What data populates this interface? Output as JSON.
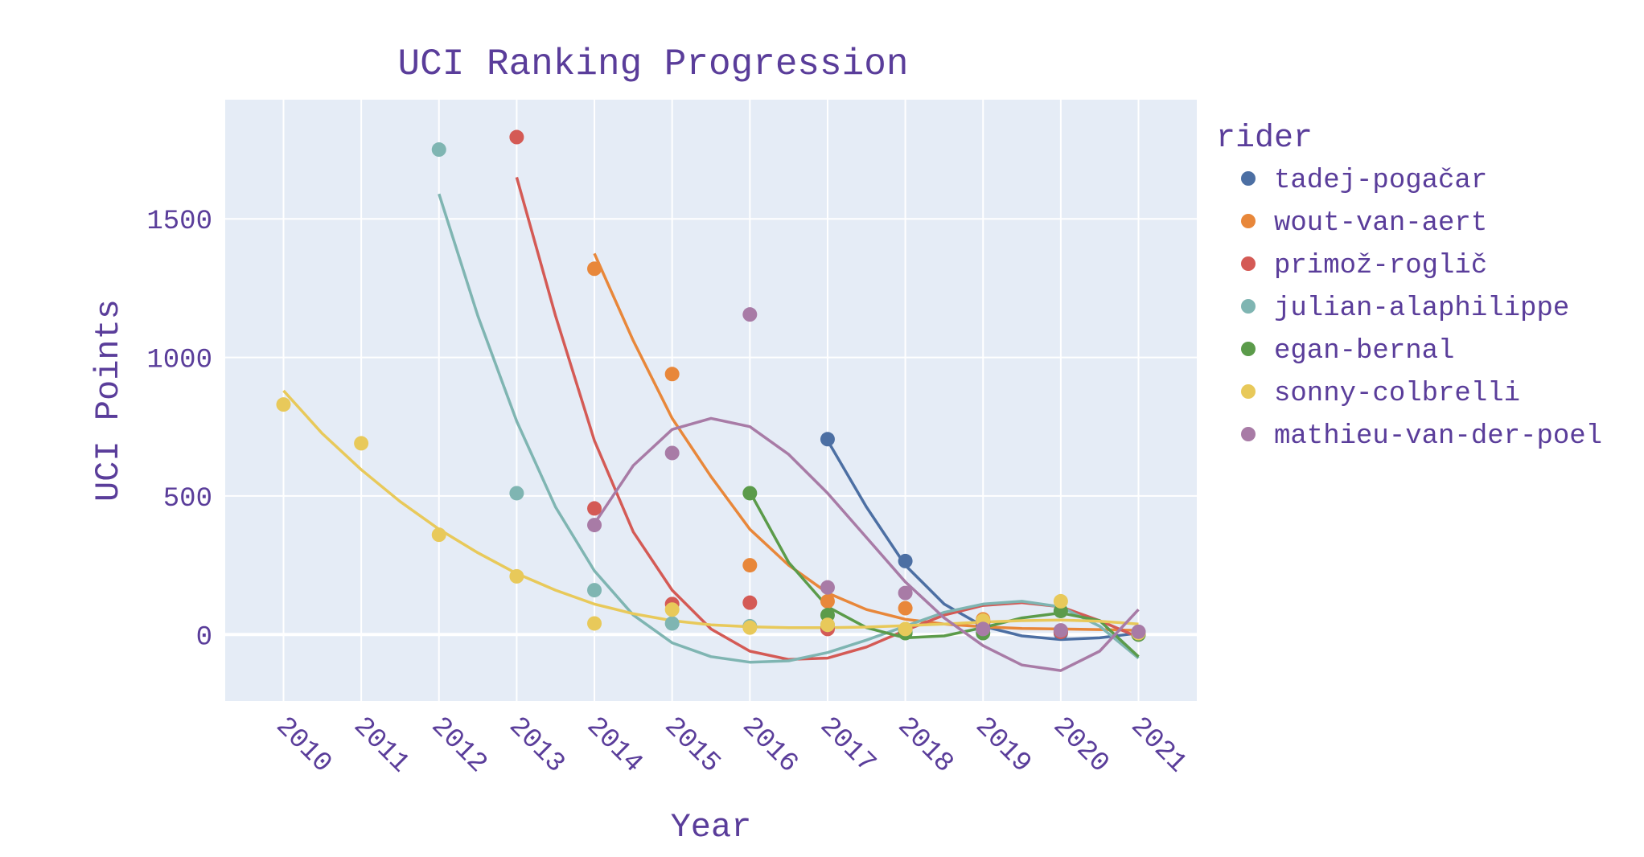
{
  "chart_data": {
    "type": "scatter",
    "title": "UCI Ranking Progression",
    "xlabel": "Year",
    "ylabel": "UCI Points",
    "legend_title": "rider",
    "legend_position": "right",
    "grid": true,
    "xlim": [
      2009.25,
      2021.75
    ],
    "ylim": [
      -240,
      1930
    ],
    "x_ticks": [
      2010,
      2011,
      2012,
      2013,
      2014,
      2015,
      2016,
      2017,
      2018,
      2019,
      2020,
      2021
    ],
    "y_ticks": [
      0,
      500,
      1000,
      1500
    ],
    "plot_background": "#e5ecf6",
    "series": [
      {
        "name": "tadej-pogačar",
        "color": "#4c6fa3",
        "points": [
          [
            2017,
            705
          ],
          [
            2018,
            265
          ],
          [
            2019,
            35
          ],
          [
            2020,
            5
          ],
          [
            2021,
            8
          ]
        ],
        "curve": [
          [
            2017,
            700
          ],
          [
            2017.5,
            460
          ],
          [
            2018,
            250
          ],
          [
            2018.5,
            110
          ],
          [
            2019,
            30
          ],
          [
            2019.5,
            -5
          ],
          [
            2020,
            -18
          ],
          [
            2020.5,
            -12
          ],
          [
            2021,
            5
          ]
        ]
      },
      {
        "name": "wout-van-aert",
        "color": "#e8873a",
        "points": [
          [
            2014,
            1320
          ],
          [
            2015,
            940
          ],
          [
            2016,
            250
          ],
          [
            2017,
            120
          ],
          [
            2018,
            95
          ],
          [
            2019,
            55
          ],
          [
            2020,
            10
          ],
          [
            2021,
            5
          ]
        ],
        "curve": [
          [
            2014,
            1375
          ],
          [
            2014.5,
            1060
          ],
          [
            2015,
            780
          ],
          [
            2015.5,
            570
          ],
          [
            2016,
            380
          ],
          [
            2016.5,
            250
          ],
          [
            2017,
            150
          ],
          [
            2017.5,
            90
          ],
          [
            2018,
            55
          ],
          [
            2018.5,
            38
          ],
          [
            2019,
            28
          ],
          [
            2019.5,
            22
          ],
          [
            2020,
            20
          ],
          [
            2020.5,
            18
          ],
          [
            2021,
            15
          ]
        ]
      },
      {
        "name": "primož-roglič",
        "color": "#d45a55",
        "points": [
          [
            2013,
            1795
          ],
          [
            2014,
            455
          ],
          [
            2015,
            110
          ],
          [
            2016,
            115
          ],
          [
            2017,
            20
          ],
          [
            2018,
            15
          ],
          [
            2019,
            45
          ],
          [
            2020,
            10
          ],
          [
            2021,
            0
          ]
        ],
        "curve": [
          [
            2013,
            1650
          ],
          [
            2013.5,
            1150
          ],
          [
            2014,
            700
          ],
          [
            2014.5,
            370
          ],
          [
            2015,
            160
          ],
          [
            2015.5,
            20
          ],
          [
            2016,
            -60
          ],
          [
            2016.5,
            -90
          ],
          [
            2017,
            -85
          ],
          [
            2017.5,
            -45
          ],
          [
            2018,
            15
          ],
          [
            2018.5,
            70
          ],
          [
            2019,
            105
          ],
          [
            2019.5,
            115
          ],
          [
            2020,
            100
          ],
          [
            2020.5,
            50
          ],
          [
            2021,
            -10
          ]
        ]
      },
      {
        "name": "julian-alaphilippe",
        "color": "#7fb5b2",
        "points": [
          [
            2012,
            1750
          ],
          [
            2013,
            510
          ],
          [
            2014,
            160
          ],
          [
            2015,
            40
          ],
          [
            2016,
            30
          ],
          [
            2017,
            35
          ],
          [
            2018,
            10
          ],
          [
            2019,
            20
          ],
          [
            2020,
            85
          ],
          [
            2021,
            0
          ]
        ],
        "curve": [
          [
            2012,
            1590
          ],
          [
            2012.5,
            1150
          ],
          [
            2013,
            770
          ],
          [
            2013.5,
            460
          ],
          [
            2014,
            230
          ],
          [
            2014.5,
            70
          ],
          [
            2015,
            -30
          ],
          [
            2015.5,
            -80
          ],
          [
            2016,
            -100
          ],
          [
            2016.5,
            -95
          ],
          [
            2017,
            -65
          ],
          [
            2017.5,
            -20
          ],
          [
            2018,
            30
          ],
          [
            2018.5,
            80
          ],
          [
            2019,
            110
          ],
          [
            2019.5,
            120
          ],
          [
            2020,
            100
          ],
          [
            2020.5,
            30
          ],
          [
            2021,
            -85
          ]
        ]
      },
      {
        "name": "egan-bernal",
        "color": "#5b9b4a",
        "points": [
          [
            2016,
            510
          ],
          [
            2017,
            70
          ],
          [
            2018,
            5
          ],
          [
            2019,
            5
          ],
          [
            2020,
            85
          ],
          [
            2021,
            0
          ]
        ],
        "curve": [
          [
            2016,
            515
          ],
          [
            2016.5,
            260
          ],
          [
            2017,
            100
          ],
          [
            2017.5,
            25
          ],
          [
            2018,
            -12
          ],
          [
            2018.5,
            -5
          ],
          [
            2019,
            25
          ],
          [
            2019.5,
            60
          ],
          [
            2020,
            78
          ],
          [
            2020.5,
            50
          ],
          [
            2021,
            -80
          ]
        ]
      },
      {
        "name": "sonny-colbrelli",
        "color": "#e8c95a",
        "points": [
          [
            2010,
            830
          ],
          [
            2011,
            690
          ],
          [
            2012,
            360
          ],
          [
            2013,
            210
          ],
          [
            2014,
            40
          ],
          [
            2015,
            90
          ],
          [
            2016,
            25
          ],
          [
            2017,
            35
          ],
          [
            2018,
            20
          ],
          [
            2019,
            50
          ],
          [
            2020,
            120
          ],
          [
            2021,
            5
          ]
        ],
        "curve": [
          [
            2010,
            880
          ],
          [
            2010.5,
            725
          ],
          [
            2011,
            595
          ],
          [
            2011.5,
            480
          ],
          [
            2012,
            380
          ],
          [
            2012.5,
            295
          ],
          [
            2013,
            220
          ],
          [
            2013.5,
            160
          ],
          [
            2014,
            110
          ],
          [
            2014.5,
            75
          ],
          [
            2015,
            50
          ],
          [
            2015.5,
            35
          ],
          [
            2016,
            28
          ],
          [
            2016.5,
            25
          ],
          [
            2017,
            25
          ],
          [
            2017.5,
            27
          ],
          [
            2018,
            32
          ],
          [
            2018.5,
            38
          ],
          [
            2019,
            45
          ],
          [
            2019.5,
            50
          ],
          [
            2020,
            52
          ],
          [
            2020.5,
            48
          ],
          [
            2021,
            38
          ]
        ]
      },
      {
        "name": "mathieu-van-der-poel",
        "color": "#a87ba6",
        "points": [
          [
            2014,
            395
          ],
          [
            2015,
            655
          ],
          [
            2016,
            1155
          ],
          [
            2017,
            170
          ],
          [
            2018,
            150
          ],
          [
            2019,
            20
          ],
          [
            2020,
            15
          ],
          [
            2021,
            10
          ]
        ],
        "curve": [
          [
            2014,
            400
          ],
          [
            2014.5,
            610
          ],
          [
            2015,
            740
          ],
          [
            2015.5,
            780
          ],
          [
            2016,
            750
          ],
          [
            2016.5,
            650
          ],
          [
            2017,
            510
          ],
          [
            2017.5,
            350
          ],
          [
            2018,
            190
          ],
          [
            2018.5,
            60
          ],
          [
            2019,
            -40
          ],
          [
            2019.5,
            -110
          ],
          [
            2020,
            -130
          ],
          [
            2020.5,
            -60
          ],
          [
            2021,
            90
          ]
        ]
      }
    ]
  }
}
